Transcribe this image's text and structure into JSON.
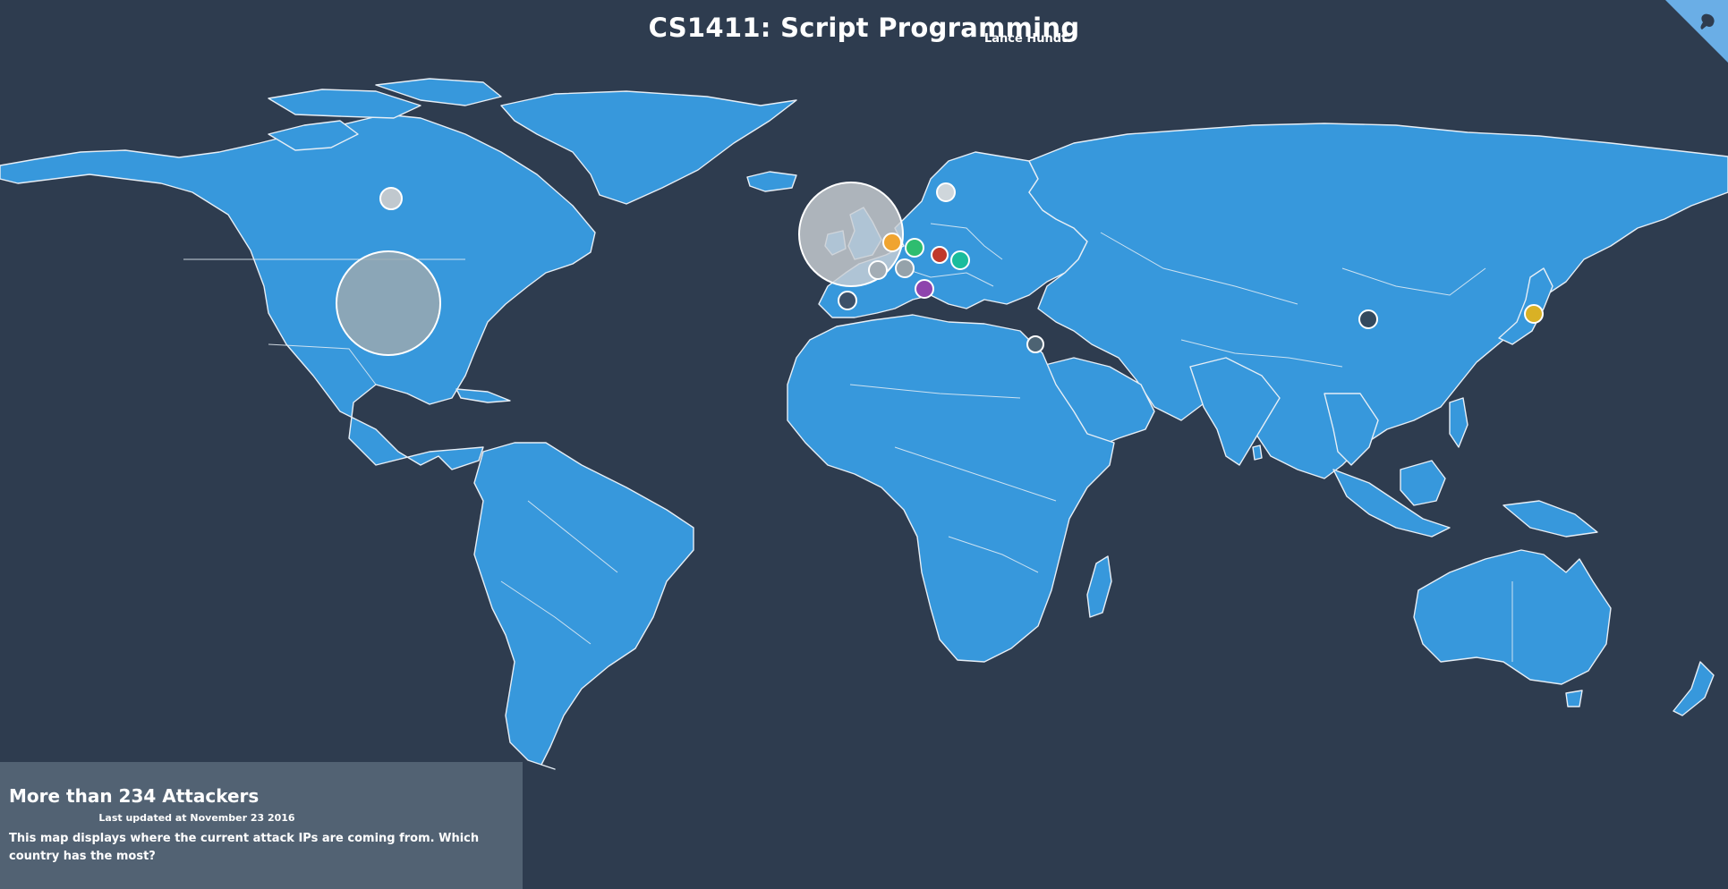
{
  "header": {
    "title": "CS1411: Script Programming",
    "subtitle": "Lance Hundt"
  },
  "info_panel": {
    "title": "More than 234 Attackers",
    "updated": "Last updated at November 23 2016",
    "description": "This map displays where the current attack IPs are coming from. Which country has the most?"
  },
  "colors": {
    "ocean": "#2e3c4f",
    "land": "#3798dc",
    "border": "#e6eef6",
    "panel": "#526273"
  },
  "markers": [
    {
      "name": "United States",
      "relative_size": "largest",
      "color": "#9aa8b0"
    },
    {
      "name": "United Kingdom",
      "relative_size": "large",
      "color": "#c9ced3"
    },
    {
      "name": "Canada",
      "relative_size": "small",
      "color": "#c0c8ce"
    },
    {
      "name": "Sweden",
      "relative_size": "small",
      "color": "#cfd6db"
    },
    {
      "name": "Netherlands",
      "relative_size": "small",
      "color": "#f0a430"
    },
    {
      "name": "Germany",
      "relative_size": "small",
      "color": "#2ebd6f"
    },
    {
      "name": "France",
      "relative_size": "small",
      "color": "#a3adb5"
    },
    {
      "name": "Switzerland",
      "relative_size": "small",
      "color": "#95a2aa"
    },
    {
      "name": "Czech Republic",
      "relative_size": "small",
      "color": "#c0392b"
    },
    {
      "name": "Poland",
      "relative_size": "small",
      "color": "#1abc9c"
    },
    {
      "name": "Italy",
      "relative_size": "small",
      "color": "#8e44ad"
    },
    {
      "name": "Spain",
      "relative_size": "small",
      "color": "#3d5068"
    },
    {
      "name": "Israel",
      "relative_size": "small",
      "color": "#4d6373"
    },
    {
      "name": "China",
      "relative_size": "small",
      "color": "#34495e"
    },
    {
      "name": "Japan",
      "relative_size": "small",
      "color": "#d9b125"
    }
  ]
}
